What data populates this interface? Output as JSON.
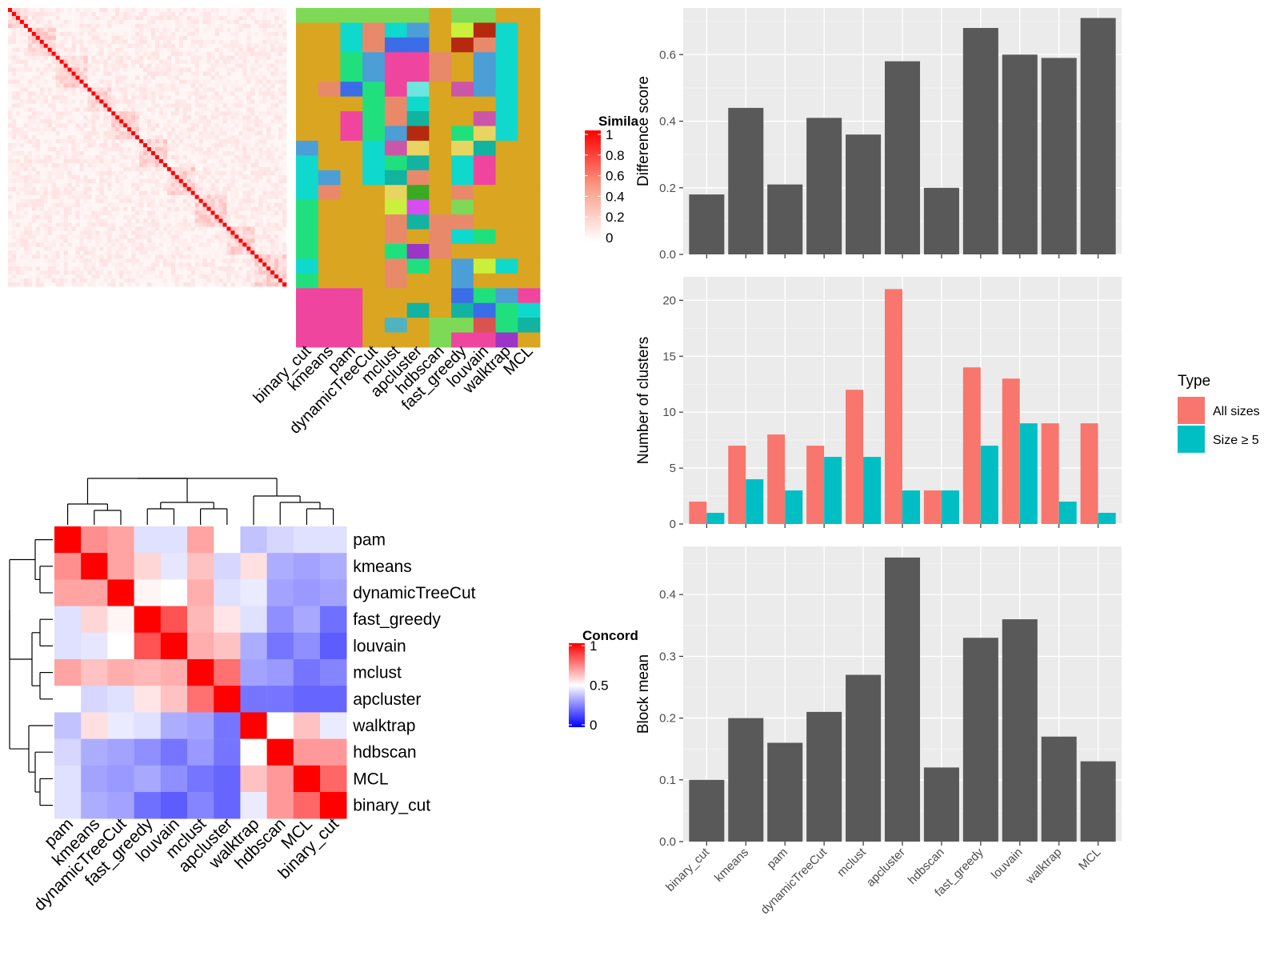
{
  "colors": {
    "panel_bg": "#ebebeb",
    "grid": "#ffffff",
    "bar_dark": "#595959",
    "all_sizes": "#F8766D",
    "size5": "#00BFC4",
    "sim_high": "#ff0000",
    "conc_high": "#ff0000",
    "conc_mid": "#ffffff",
    "conc_low": "#0000ff"
  },
  "similarity_heatmap": {
    "legend_title": "Simila",
    "legend_ticks": [
      "1",
      "0.8",
      "0.6",
      "0.4",
      "0.2",
      "0"
    ],
    "n_terms": 70
  },
  "membership_panel": {
    "methods": [
      "binary_cut",
      "kmeans",
      "pam",
      "dynamicTreeCut",
      "mclust",
      "apcluster",
      "hdbscan",
      "fast_greedy",
      "louvain",
      "walktrap",
      "MCL"
    ],
    "palette": [
      "#daa520",
      "#7ed957",
      "#1fe07d",
      "#0fd9cc",
      "#f0459f",
      "#e88a6a",
      "#4b9ed6",
      "#e8d460",
      "#b5290f",
      "#6ee6e0",
      "#3b6de8",
      "#d9534f",
      "#cc55aa",
      "#12b3a0",
      "#3aaa22",
      "#d94cf0",
      "#9b35c7",
      "#c9f03a",
      "#4fb3c0",
      "#a8e05a"
    ],
    "blocks": [
      {
        "r": 0,
        "c": [
          1,
          1,
          1,
          1,
          1,
          1,
          0,
          1,
          1,
          0,
          0
        ]
      },
      {
        "r": 1,
        "c": [
          0,
          0,
          3,
          5,
          3,
          6,
          0,
          17,
          8,
          3,
          0
        ]
      },
      {
        "r": 2,
        "c": [
          0,
          0,
          3,
          5,
          10,
          10,
          0,
          8,
          5,
          3,
          0
        ]
      },
      {
        "r": 3,
        "c": [
          0,
          0,
          2,
          6,
          4,
          4,
          5,
          0,
          6,
          3,
          0
        ]
      },
      {
        "r": 4,
        "c": [
          0,
          0,
          2,
          6,
          4,
          4,
          5,
          0,
          6,
          3,
          0
        ]
      },
      {
        "r": 5,
        "c": [
          0,
          5,
          10,
          2,
          4,
          9,
          0,
          12,
          6,
          3,
          0
        ]
      },
      {
        "r": 6,
        "c": [
          0,
          0,
          0,
          2,
          5,
          3,
          0,
          0,
          0,
          3,
          0
        ]
      },
      {
        "r": 7,
        "c": [
          0,
          0,
          4,
          2,
          5,
          13,
          0,
          0,
          12,
          3,
          0
        ]
      },
      {
        "r": 8,
        "c": [
          0,
          0,
          4,
          2,
          6,
          8,
          0,
          2,
          7,
          3,
          0
        ]
      },
      {
        "r": 9,
        "c": [
          6,
          0,
          0,
          3,
          12,
          7,
          0,
          7,
          13,
          0,
          0
        ]
      },
      {
        "r": 10,
        "c": [
          3,
          0,
          0,
          3,
          2,
          13,
          0,
          3,
          4,
          0,
          0
        ]
      },
      {
        "r": 11,
        "c": [
          3,
          6,
          0,
          3,
          13,
          5,
          0,
          3,
          4,
          0,
          0
        ]
      },
      {
        "r": 12,
        "c": [
          3,
          5,
          0,
          0,
          7,
          14,
          0,
          5,
          0,
          0,
          0
        ]
      },
      {
        "r": 13,
        "c": [
          2,
          0,
          0,
          0,
          17,
          15,
          0,
          1,
          0,
          0,
          0
        ]
      },
      {
        "r": 14,
        "c": [
          2,
          0,
          0,
          0,
          5,
          13,
          5,
          5,
          0,
          0,
          0
        ]
      },
      {
        "r": 15,
        "c": [
          2,
          0,
          0,
          0,
          5,
          0,
          5,
          3,
          2,
          0,
          0
        ]
      },
      {
        "r": 16,
        "c": [
          2,
          0,
          0,
          0,
          2,
          16,
          5,
          0,
          0,
          0,
          0
        ]
      },
      {
        "r": 17,
        "c": [
          3,
          0,
          0,
          0,
          5,
          2,
          0,
          6,
          17,
          3,
          0
        ]
      },
      {
        "r": 18,
        "c": [
          2,
          0,
          0,
          0,
          5,
          0,
          0,
          6,
          0,
          0,
          0
        ]
      },
      {
        "r": 19,
        "c": [
          4,
          4,
          4,
          0,
          0,
          0,
          0,
          10,
          2,
          6,
          4
        ]
      },
      {
        "r": 20,
        "c": [
          4,
          4,
          4,
          0,
          0,
          13,
          0,
          13,
          10,
          2,
          3
        ]
      },
      {
        "r": 21,
        "c": [
          4,
          4,
          4,
          0,
          18,
          0,
          1,
          1,
          11,
          2,
          13
        ]
      },
      {
        "r": 22,
        "c": [
          4,
          4,
          4,
          0,
          0,
          0,
          1,
          4,
          4,
          16,
          0
        ]
      }
    ]
  },
  "concordance": {
    "legend_title": "Concord",
    "legend_ticks": [
      "1",
      "0.5",
      "0"
    ],
    "rows": [
      "pam",
      "kmeans",
      "dynamicTreeCut",
      "fast_greedy",
      "louvain",
      "mclust",
      "apcluster",
      "walktrap",
      "hdbscan",
      "MCL",
      "binary_cut"
    ],
    "cols": [
      "pam",
      "kmeans",
      "dynamicTreeCut",
      "fast_greedy",
      "louvain",
      "mclust",
      "apcluster",
      "walktrap",
      "hdbscan",
      "MCL",
      "binary_cut"
    ],
    "values": [
      [
        1.0,
        0.72,
        0.68,
        0.44,
        0.44,
        0.68,
        0.5,
        0.38,
        0.42,
        0.44,
        0.44
      ],
      [
        0.72,
        1.0,
        0.68,
        0.58,
        0.45,
        0.62,
        0.42,
        0.56,
        0.34,
        0.32,
        0.34
      ],
      [
        0.68,
        0.68,
        1.0,
        0.52,
        0.5,
        0.66,
        0.44,
        0.46,
        0.32,
        0.3,
        0.32
      ],
      [
        0.44,
        0.58,
        0.52,
        1.0,
        0.84,
        0.64,
        0.55,
        0.44,
        0.28,
        0.33,
        0.22
      ],
      [
        0.44,
        0.45,
        0.5,
        0.84,
        1.0,
        0.66,
        0.62,
        0.34,
        0.23,
        0.28,
        0.18
      ],
      [
        0.68,
        0.62,
        0.66,
        0.64,
        0.66,
        1.0,
        0.78,
        0.32,
        0.3,
        0.23,
        0.26
      ],
      [
        0.5,
        0.42,
        0.44,
        0.55,
        0.62,
        0.78,
        1.0,
        0.23,
        0.23,
        0.2,
        0.2
      ],
      [
        0.38,
        0.56,
        0.46,
        0.44,
        0.34,
        0.32,
        0.23,
        1.0,
        0.5,
        0.62,
        0.46
      ],
      [
        0.42,
        0.34,
        0.32,
        0.28,
        0.23,
        0.3,
        0.23,
        0.5,
        1.0,
        0.7,
        0.7
      ],
      [
        0.44,
        0.32,
        0.3,
        0.33,
        0.28,
        0.23,
        0.2,
        0.62,
        0.7,
        1.0,
        0.8
      ],
      [
        0.44,
        0.34,
        0.32,
        0.22,
        0.18,
        0.26,
        0.2,
        0.46,
        0.7,
        0.8,
        1.0
      ]
    ]
  },
  "chart_data": [
    {
      "type": "bar",
      "categories": [
        "binary_cut",
        "kmeans",
        "pam",
        "dynamicTreeCut",
        "mclust",
        "apcluster",
        "hdbscan",
        "fast_greedy",
        "louvain",
        "walktrap",
        "MCL"
      ],
      "values": [
        0.18,
        0.44,
        0.21,
        0.41,
        0.36,
        0.58,
        0.2,
        0.68,
        0.6,
        0.59,
        0.71
      ],
      "title": "",
      "xlabel": "",
      "ylabel": "Difference score",
      "ylim": [
        0,
        0.74
      ],
      "yticks": [
        0.0,
        0.2,
        0.4,
        0.6
      ],
      "yticklabels": [
        "0.0",
        "0.2",
        "0.4",
        "0.6"
      ],
      "grid": true
    },
    {
      "type": "bar",
      "categories": [
        "binary_cut",
        "kmeans",
        "pam",
        "dynamicTreeCut",
        "mclust",
        "apcluster",
        "hdbscan",
        "fast_greedy",
        "louvain",
        "walktrap",
        "MCL"
      ],
      "series": [
        {
          "name": "All sizes",
          "values": [
            2,
            7,
            8,
            7,
            12,
            21,
            3,
            14,
            13,
            9,
            9
          ]
        },
        {
          "name": "Size ≥ 5",
          "values": [
            1,
            4,
            3,
            6,
            6,
            3,
            3,
            7,
            9,
            2,
            1
          ]
        }
      ],
      "title": "",
      "xlabel": "",
      "ylabel": "Number of clusters",
      "ylim": [
        0,
        22.1
      ],
      "yticks": [
        0,
        5,
        10,
        15,
        20
      ],
      "yticklabels": [
        "0",
        "5",
        "10",
        "15",
        "20"
      ],
      "grid": true,
      "legend": {
        "title": "Type",
        "position": "right"
      }
    },
    {
      "type": "bar",
      "categories": [
        "binary_cut",
        "kmeans",
        "pam",
        "dynamicTreeCut",
        "mclust",
        "apcluster",
        "hdbscan",
        "fast_greedy",
        "louvain",
        "walktrap",
        "MCL"
      ],
      "values": [
        0.1,
        0.2,
        0.16,
        0.21,
        0.27,
        0.46,
        0.12,
        0.33,
        0.36,
        0.17,
        0.13
      ],
      "title": "",
      "xlabel": "",
      "ylabel": "Block mean",
      "ylim": [
        0,
        0.478
      ],
      "yticks": [
        0.0,
        0.1,
        0.2,
        0.3,
        0.4
      ],
      "yticklabels": [
        "0.0",
        "0.1",
        "0.2",
        "0.3",
        "0.4"
      ],
      "grid": true
    }
  ]
}
